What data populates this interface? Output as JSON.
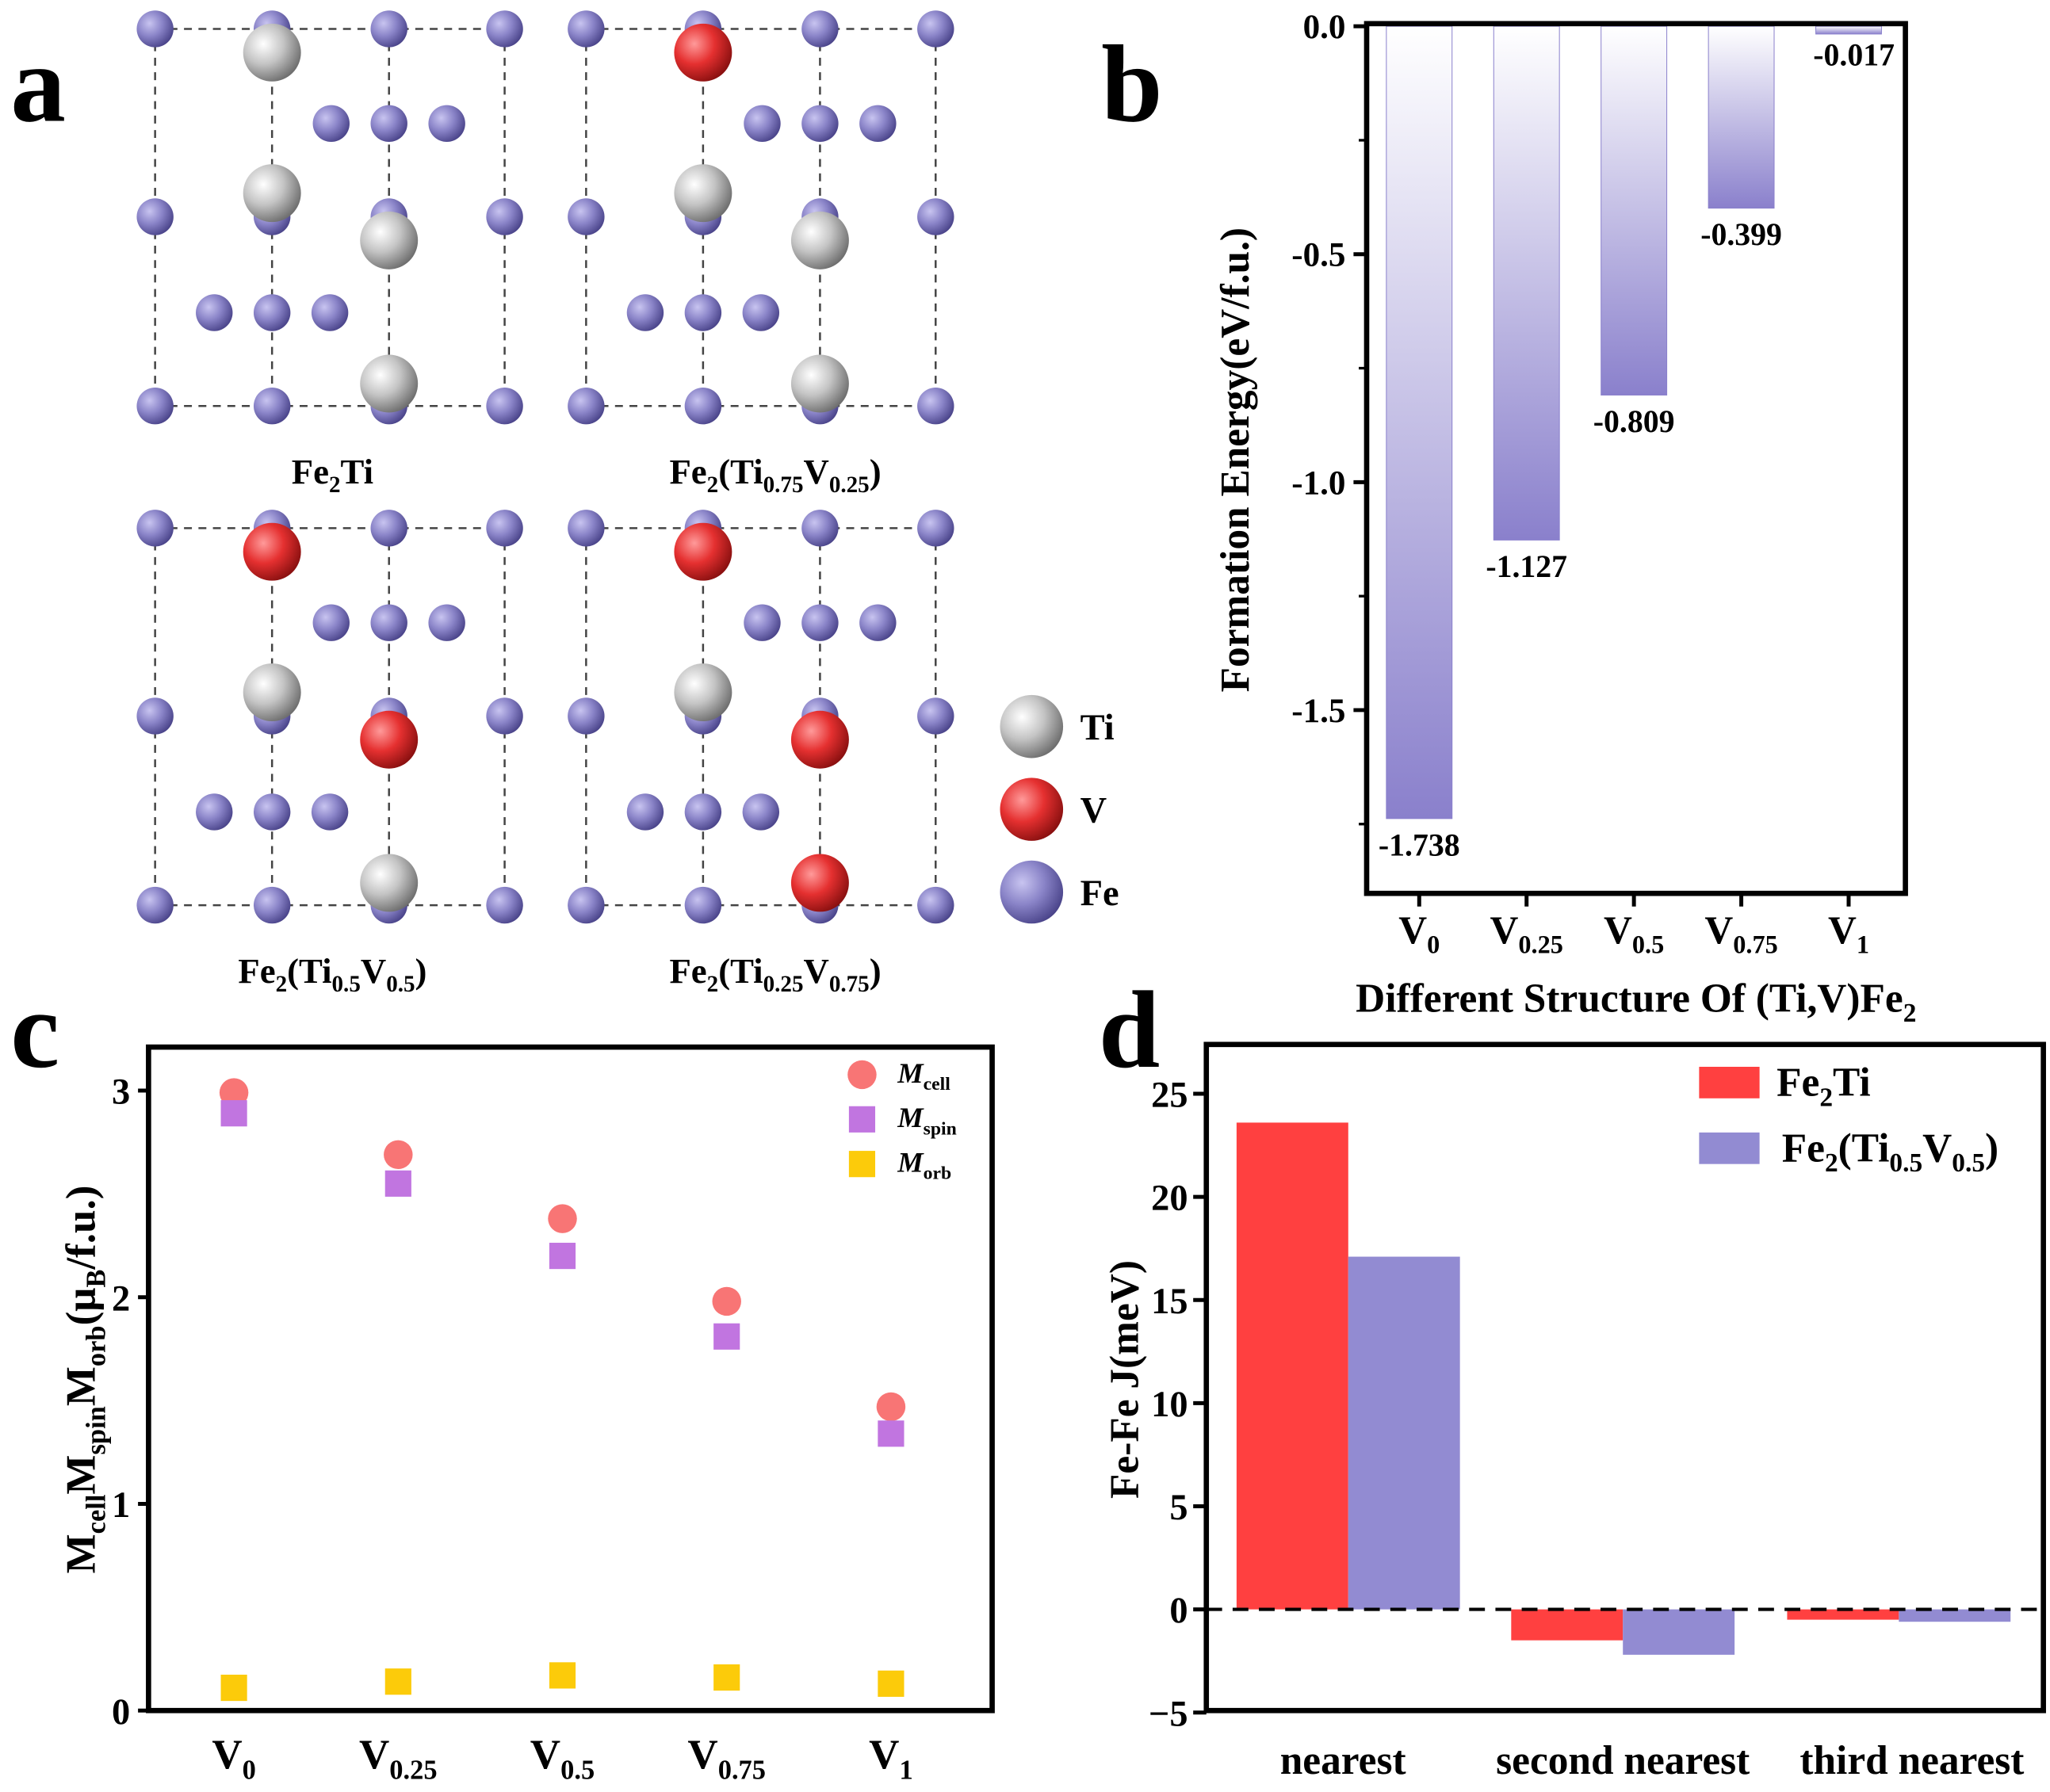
{
  "panel_letters": {
    "a": "a",
    "b": "b",
    "c": "c",
    "d": "d"
  },
  "panel_a": {
    "cells": [
      {
        "label": "Fe_{2}Ti",
        "sites": [
          "Ti",
          "Ti",
          "Ti",
          "Ti"
        ]
      },
      {
        "label": "Fe_{2}(Ti_{0.75}V_{0.25})",
        "sites": [
          "V",
          "Ti",
          "Ti",
          "Ti"
        ]
      },
      {
        "label": "Fe_{2}(Ti_{0.5}V_{0.5})",
        "sites": [
          "V",
          "Ti",
          "V",
          "Ti"
        ]
      },
      {
        "label": "Fe_{2}(Ti_{0.25}V_{0.75})",
        "sites": [
          "V",
          "Ti",
          "V",
          "V"
        ]
      }
    ],
    "legend": [
      {
        "label": "Ti",
        "color": "#c4c4c4"
      },
      {
        "label": "V",
        "color": "#e53030"
      },
      {
        "label": "Fe",
        "color": "#8a84c8"
      }
    ]
  },
  "chart_data": [
    {
      "panel": "b",
      "type": "bar",
      "categories": [
        "V_{0}",
        "V_{0.25}",
        "V_{0.5}",
        "V_{0.75}",
        "V_{1}"
      ],
      "values": [
        -1.738,
        -1.127,
        -0.809,
        -0.399,
        -0.017
      ],
      "data_labels": [
        "-1.738",
        "-1.127",
        "-0.809",
        "-0.399",
        "-0.017"
      ],
      "xlabel": "Different Structure Of (Ti,V)Fe_{2}",
      "ylabel": "Formation Energy(eV/f.u.)",
      "ylim": [
        -1.9,
        0.0
      ],
      "yticks": [
        0.0,
        -0.5,
        -1.0,
        -1.5
      ],
      "ytick_labels": [
        "0.0",
        "-0.5",
        "-1.0",
        "-1.5"
      ],
      "bar_color": "#8a80cc"
    },
    {
      "panel": "c",
      "type": "scatter",
      "categories": [
        "V_{0}",
        "V_{0.25}",
        "V_{0.5}",
        "V_{0.75}",
        "V_{1}"
      ],
      "series": [
        {
          "name": "M_{cell}",
          "marker": "circle",
          "color": "#f87575",
          "values": [
            2.99,
            2.69,
            2.38,
            1.98,
            1.47
          ]
        },
        {
          "name": "M_{spin}",
          "marker": "square",
          "color": "#c175e0",
          "values": [
            2.89,
            2.55,
            2.2,
            1.81,
            1.34
          ]
        },
        {
          "name": "M_{orb}",
          "marker": "square",
          "color": "#fccb0a",
          "values": [
            0.11,
            0.14,
            0.17,
            0.16,
            0.13
          ]
        }
      ],
      "ylabel": "M_{cell}M_{spin}M_{orb}(μ_{B}/f.u.)",
      "ylim": [
        0,
        3.2
      ],
      "yticks": [
        0,
        1,
        2,
        3
      ],
      "ytick_labels": [
        "0",
        "1",
        "2",
        "3"
      ],
      "legend": "top-right"
    },
    {
      "panel": "d",
      "type": "bar",
      "categories": [
        "nearest",
        "second nearest",
        "third nearest"
      ],
      "series": [
        {
          "name": "Fe_{2}Ti",
          "color": "#ff4040",
          "values": [
            23.6,
            -1.5,
            -0.5
          ]
        },
        {
          "name": "Fe_{2}(Ti_{0.5}V_{0.5})",
          "color": "#928bd2",
          "values": [
            17.1,
            -2.2,
            -0.6
          ]
        }
      ],
      "ylabel": "Fe-Fe J(meV)",
      "ylim": [
        -5,
        27.3
      ],
      "yticks": [
        -5,
        0,
        5,
        10,
        15,
        20,
        25
      ],
      "ytick_labels": [
        "−5",
        "0",
        "5",
        "10",
        "15",
        "20",
        "25"
      ],
      "reference_line": 0,
      "legend": "top-right"
    }
  ]
}
